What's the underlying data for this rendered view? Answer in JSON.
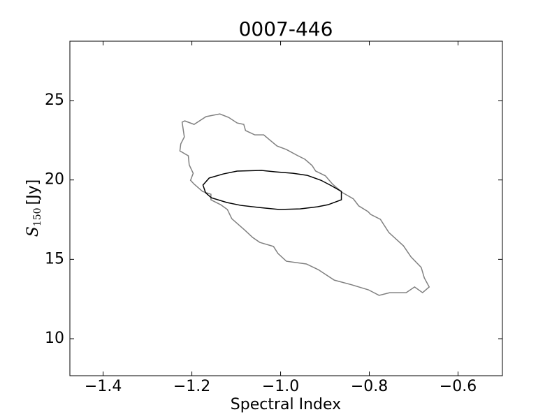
{
  "chart_data": {
    "type": "contour",
    "title": "0007-446",
    "xlabel": "Spectral Index",
    "ylabel": {
      "symbol": "S",
      "subscript": "150",
      "unit": "[Jy]"
    },
    "xlim": [
      -1.475,
      -0.5
    ],
    "ylim": [
      7.67,
      28.74
    ],
    "xticks": [
      {
        "value": -1.4,
        "label": "−1.4"
      },
      {
        "value": -1.2,
        "label": "−1.2"
      },
      {
        "value": -1.0,
        "label": "−1.0"
      },
      {
        "value": -0.8,
        "label": "−0.8"
      },
      {
        "value": -0.6,
        "label": "−0.6"
      }
    ],
    "yticks": [
      10,
      15,
      20,
      25
    ],
    "series": [
      {
        "color": "#808080",
        "x": [
          -1.222,
          -1.216,
          -1.195,
          -1.168,
          -1.137,
          -1.117,
          -1.098,
          -1.083,
          -1.079,
          -1.058,
          -1.038,
          -1.027,
          -1.008,
          -0.987,
          -0.964,
          -0.945,
          -0.929,
          -0.921,
          -0.899,
          -0.883,
          -0.861,
          -0.836,
          -0.824,
          -0.803,
          -0.797,
          -0.775,
          -0.756,
          -0.723,
          -0.706,
          -0.683,
          -0.676,
          -0.665,
          -0.68,
          -0.698,
          -0.717,
          -0.754,
          -0.778,
          -0.802,
          -0.839,
          -0.879,
          -0.915,
          -0.942,
          -0.987,
          -1.006,
          -1.016,
          -1.047,
          -1.063,
          -1.08,
          -1.11,
          -1.12,
          -1.135,
          -1.157,
          -1.157,
          -1.176,
          -1.195,
          -1.203,
          -1.197,
          -1.206,
          -1.208,
          -1.227,
          -1.225,
          -1.217
        ],
        "values": [
          23.64,
          23.72,
          23.5,
          23.99,
          24.16,
          23.94,
          23.59,
          23.5,
          23.11,
          22.84,
          22.84,
          22.58,
          22.14,
          21.92,
          21.57,
          21.3,
          20.91,
          20.56,
          20.26,
          19.74,
          19.21,
          18.81,
          18.37,
          18.01,
          17.83,
          17.52,
          16.69,
          15.85,
          15.15,
          14.49,
          13.83,
          13.26,
          12.9,
          13.26,
          12.9,
          12.9,
          12.73,
          13.08,
          13.39,
          13.69,
          14.35,
          14.71,
          14.88,
          15.37,
          15.81,
          16.07,
          16.38,
          16.82,
          17.56,
          18.14,
          18.44,
          18.75,
          19.1,
          19.28,
          19.74,
          19.98,
          20.42,
          20.95,
          21.52,
          21.83,
          22.27,
          22.71
        ]
      },
      {
        "color": "#000000",
        "x": [
          -1.175,
          -1.161,
          -1.129,
          -1.098,
          -1.043,
          -1.011,
          -0.972,
          -0.94,
          -0.909,
          -0.885,
          -0.863,
          -0.863,
          -0.893,
          -0.917,
          -0.956,
          -1.003,
          -1.05,
          -1.09,
          -1.121,
          -1.156,
          -1.169
        ],
        "values": [
          19.68,
          20.12,
          20.38,
          20.56,
          20.6,
          20.51,
          20.42,
          20.29,
          19.98,
          19.63,
          19.28,
          18.75,
          18.44,
          18.31,
          18.18,
          18.14,
          18.27,
          18.4,
          18.58,
          18.88,
          19.19
        ]
      }
    ]
  }
}
